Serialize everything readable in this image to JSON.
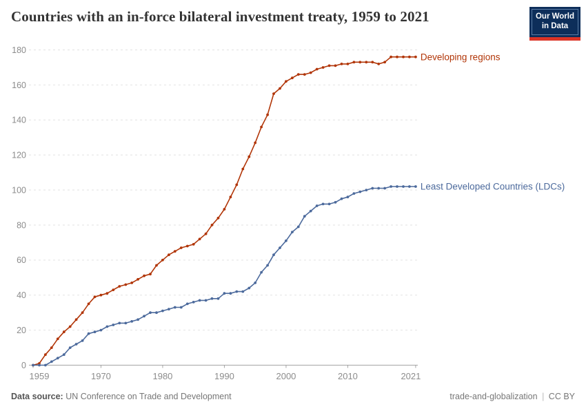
{
  "header": {
    "title": "Countries with an in-force bilateral investment treaty, 1959 to 2021",
    "logo": {
      "line1": "Our World",
      "line2": "in Data"
    }
  },
  "footer": {
    "datasource_label": "Data source:",
    "datasource_value": "UN Conference on Trade and Development",
    "slug": "trade-and-globalization",
    "separator": "|",
    "license": "CC BY"
  },
  "colors": {
    "developing": "#b13507",
    "ldc": "#4c6a9c",
    "grid": "#e2e2e2",
    "axis": "#a3a3a3",
    "tick_text": "#8c8c8c",
    "logo_bg": "#0d2e5a",
    "logo_bar": "#dc3426"
  },
  "chart_data": {
    "type": "line",
    "title": "Countries with an in-force bilateral investment treaty, 1959 to 2021",
    "xlabel": "",
    "ylabel": "",
    "ylim": [
      0,
      180
    ],
    "yticks": [
      0,
      20,
      40,
      60,
      80,
      100,
      120,
      140,
      160,
      180
    ],
    "xticks": [
      1959,
      1970,
      1980,
      1990,
      2000,
      2010,
      2021
    ],
    "grid": "horizontal-dashed",
    "legend": "line-end-labels",
    "x_start": 1959,
    "x_end": 2021,
    "series": [
      {
        "name": "Developing regions",
        "color": "#b13507",
        "values": [
          0,
          1,
          6,
          10,
          15,
          19,
          22,
          26,
          30,
          35,
          39,
          40,
          41,
          43,
          45,
          46,
          47,
          49,
          51,
          52,
          57,
          60,
          63,
          65,
          67,
          68,
          69,
          72,
          75,
          80,
          84,
          89,
          96,
          103,
          112,
          119,
          127,
          136,
          143,
          155,
          158,
          162,
          164,
          166,
          166,
          167,
          169,
          170,
          171,
          171,
          172,
          172,
          173,
          173,
          173,
          173,
          172,
          173,
          176,
          176,
          176,
          176,
          176
        ]
      },
      {
        "name": "Least Developed Countries (LDCs)",
        "color": "#4c6a9c",
        "values": [
          0,
          0,
          0,
          2,
          4,
          6,
          10,
          12,
          14,
          18,
          19,
          20,
          22,
          23,
          24,
          24,
          25,
          26,
          28,
          30,
          30,
          31,
          32,
          33,
          33,
          35,
          36,
          37,
          37,
          38,
          38,
          41,
          41,
          42,
          42,
          44,
          47,
          53,
          57,
          63,
          67,
          71,
          76,
          79,
          85,
          88,
          91,
          92,
          92,
          93,
          95,
          96,
          98,
          99,
          100,
          101,
          101,
          101,
          102,
          102,
          102,
          102,
          102
        ]
      }
    ]
  }
}
